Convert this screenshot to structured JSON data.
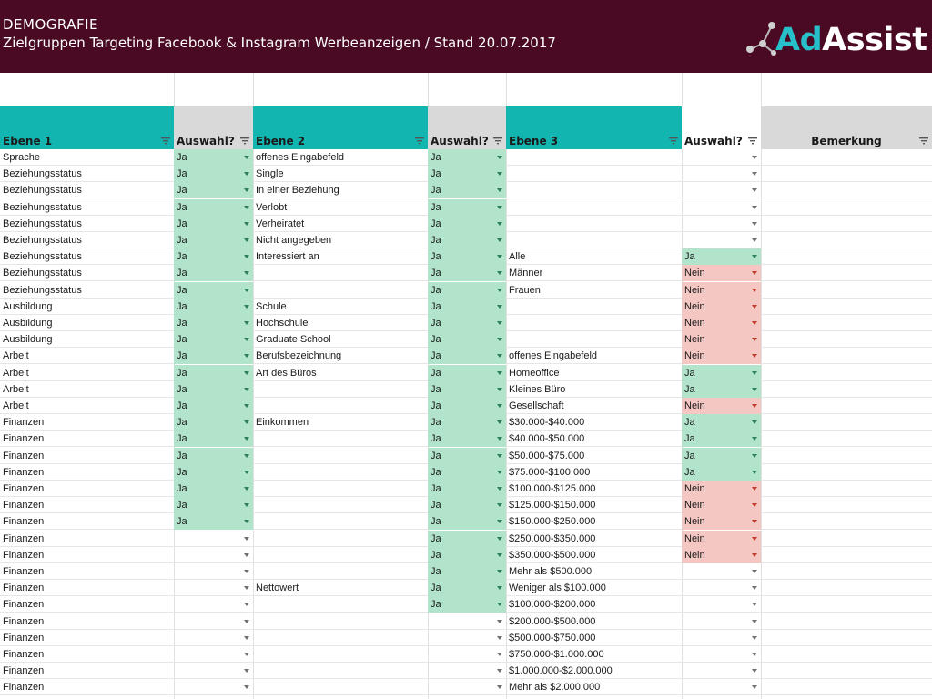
{
  "banner": {
    "title": "DEMOGRAFIE",
    "subtitle": "Zielgruppen Targeting Facebook & Instagram Werbeanzeigen / Stand 20.07.2017",
    "logo_part1": "Ad",
    "logo_part2": "Assist"
  },
  "headers": [
    "Ebene 1",
    "Auswahl?",
    "Ebene 2",
    "Auswahl?",
    "Ebene 3",
    "Auswahl?",
    "Bemerkung"
  ],
  "rows": [
    [
      "Sprache",
      "Ja",
      "offenes Eingabefeld",
      "Ja",
      "",
      ""
    ],
    [
      "Beziehungsstatus",
      "Ja",
      "Single",
      "Ja",
      "",
      ""
    ],
    [
      "Beziehungsstatus",
      "Ja",
      "In einer Beziehung",
      "Ja",
      "",
      ""
    ],
    [
      "Beziehungsstatus",
      "Ja",
      "Verlobt",
      "Ja",
      "",
      ""
    ],
    [
      "Beziehungsstatus",
      "Ja",
      "Verheiratet",
      "Ja",
      "",
      ""
    ],
    [
      "Beziehungsstatus",
      "Ja",
      "Nicht angegeben",
      "Ja",
      "",
      ""
    ],
    [
      "Beziehungsstatus",
      "Ja",
      "Interessiert an",
      "Ja",
      "Alle",
      "Ja"
    ],
    [
      "Beziehungsstatus",
      "Ja",
      "",
      "Ja",
      "Männer",
      "Nein"
    ],
    [
      "Beziehungsstatus",
      "Ja",
      "",
      "Ja",
      "Frauen",
      "Nein"
    ],
    [
      "Ausbildung",
      "Ja",
      "Schule",
      "Ja",
      "",
      "Nein"
    ],
    [
      "Ausbildung",
      "Ja",
      "Hochschule",
      "Ja",
      "",
      "Nein"
    ],
    [
      "Ausbildung",
      "Ja",
      "Graduate School",
      "Ja",
      "",
      "Nein"
    ],
    [
      "Arbeit",
      "Ja",
      "Berufsbezeichnung",
      "Ja",
      "offenes Eingabefeld",
      "Nein"
    ],
    [
      "Arbeit",
      "Ja",
      "Art des Büros",
      "Ja",
      "Homeoffice",
      "Ja"
    ],
    [
      "Arbeit",
      "Ja",
      "",
      "Ja",
      "Kleines Büro",
      "Ja"
    ],
    [
      "Arbeit",
      "Ja",
      "",
      "Ja",
      "Gesellschaft",
      "Nein"
    ],
    [
      "Finanzen",
      "Ja",
      "Einkommen",
      "Ja",
      "$30.000-$40.000",
      "Ja"
    ],
    [
      "Finanzen",
      "Ja",
      "",
      "Ja",
      "$40.000-$50.000",
      "Ja"
    ],
    [
      "Finanzen",
      "Ja",
      "",
      "Ja",
      "$50.000-$75.000",
      "Ja"
    ],
    [
      "Finanzen",
      "Ja",
      "",
      "Ja",
      "$75.000-$100.000",
      "Ja"
    ],
    [
      "Finanzen",
      "Ja",
      "",
      "Ja",
      "$100.000-$125.000",
      "Nein"
    ],
    [
      "Finanzen",
      "Ja",
      "",
      "Ja",
      "$125.000-$150.000",
      "Nein"
    ],
    [
      "Finanzen",
      "Ja",
      "",
      "Ja",
      "$150.000-$250.000",
      "Nein"
    ],
    [
      "Finanzen",
      "",
      "",
      "Ja",
      "$250.000-$350.000",
      "Nein"
    ],
    [
      "Finanzen",
      "",
      "",
      "Ja",
      "$350.000-$500.000",
      "Nein"
    ],
    [
      "Finanzen",
      "",
      "",
      "Ja",
      "Mehr als $500.000",
      ""
    ],
    [
      "Finanzen",
      "",
      "Nettowert",
      "Ja",
      "Weniger als $100.000",
      ""
    ],
    [
      "Finanzen",
      "",
      "",
      "Ja",
      "$100.000-$200.000",
      ""
    ],
    [
      "Finanzen",
      "",
      "",
      "",
      "$200.000-$500.000",
      ""
    ],
    [
      "Finanzen",
      "",
      "",
      "",
      "$500.000-$750.000",
      ""
    ],
    [
      "Finanzen",
      "",
      "",
      "",
      "$750.000-$1.000.000",
      ""
    ],
    [
      "Finanzen",
      "",
      "",
      "",
      "$1.000.000-$2.000.000",
      ""
    ],
    [
      "Finanzen",
      "",
      "",
      "",
      "Mehr als $2.000.000",
      ""
    ]
  ],
  "colors": {
    "banner": "#4a0a24",
    "header_teal": "#12b5b0",
    "header_gray": "#d9d9d9",
    "ja_fill": "#b1e4cb",
    "nein_fill": "#f5c7c3",
    "logo_accent": "#27c0c9"
  },
  "icons": {
    "filter": "filter-icon",
    "dropdown": "dropdown-arrow-icon"
  }
}
